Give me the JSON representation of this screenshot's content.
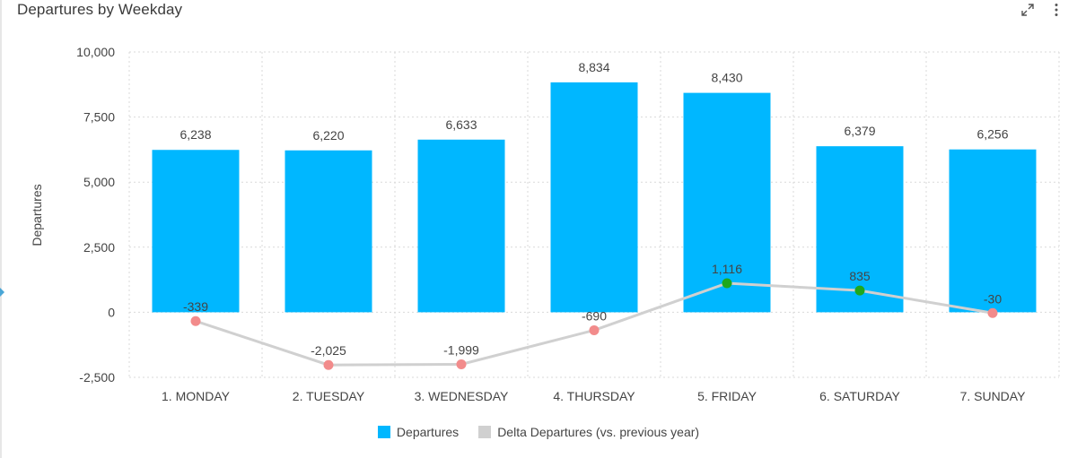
{
  "header": {
    "title": "Departures by Weekday",
    "expand_icon": "expand-icon",
    "menu_icon": "more-vertical-icon"
  },
  "colors": {
    "bar": "#00b7ff",
    "delta_line": "#d0d0d0",
    "delta_negative": "#f28b8b",
    "delta_positive": "#1ea81e",
    "grid": "#d9d9d9",
    "axis_text": "#444444"
  },
  "legend": [
    {
      "label": "Departures",
      "color": "#00b7ff"
    },
    {
      "label": "Delta Departures (vs. previous year)",
      "color": "#d0d0d0"
    }
  ],
  "chart_data": {
    "type": "bar",
    "title": "Departures by Weekday",
    "xlabel": "",
    "ylabel": "Departures",
    "ylim": [
      -2500,
      10000
    ],
    "yticks": [
      -2500,
      0,
      2500,
      5000,
      7500,
      10000
    ],
    "ytick_labels": [
      "-2,500",
      "0",
      "2,500",
      "5,000",
      "7,500",
      "10,000"
    ],
    "grid": true,
    "legend_position": "bottom",
    "categories": [
      "1. MONDAY",
      "2. TUESDAY",
      "3. WEDNESDAY",
      "4. THURSDAY",
      "5. FRIDAY",
      "6. SATURDAY",
      "7. SUNDAY"
    ],
    "series": [
      {
        "name": "Departures",
        "type": "bar",
        "values": [
          6238,
          6220,
          6633,
          8834,
          8430,
          6379,
          6256
        ],
        "labels": [
          "6,238",
          "6,220",
          "6,633",
          "8,834",
          "8,430",
          "6,379",
          "6,256"
        ]
      },
      {
        "name": "Delta Departures (vs. previous year)",
        "type": "line",
        "values": [
          -339,
          -2025,
          -1999,
          -690,
          1116,
          835,
          -30
        ],
        "labels": [
          "-339",
          "-2,025",
          "-1,999",
          "-690",
          "1,116",
          "835",
          "-30"
        ]
      }
    ]
  }
}
